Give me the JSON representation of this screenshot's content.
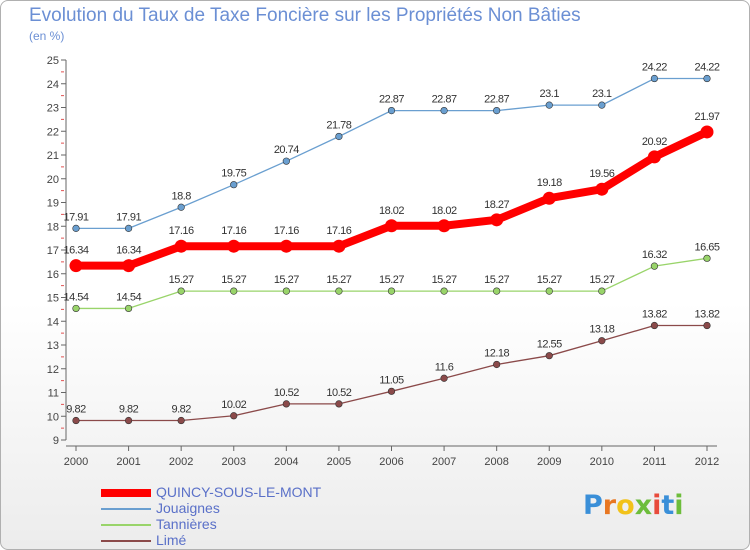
{
  "header": {
    "title": "Evolution du Taux de Taxe Foncière sur les Propriétés Non Bâties",
    "unit": "(en %)"
  },
  "branding": {
    "logo_text": "Proxiti",
    "logo_letter_colors": [
      "#3a8fd8",
      "#e87722",
      "#f2c21a",
      "#6dbd3b",
      "#e84b3c",
      "#3a8fd8",
      "#6dbd3b"
    ]
  },
  "chart_data": {
    "type": "line",
    "title": "Evolution du Taux de Taxe Foncière sur les Propriétés Non Bâties",
    "ylabel": "(en %)",
    "xlabel": "",
    "x": [
      "2000",
      "2001",
      "2002",
      "2003",
      "2004",
      "2005",
      "2006",
      "2007",
      "2008",
      "2009",
      "2010",
      "2011",
      "2012"
    ],
    "ylim": [
      9,
      25
    ],
    "yticks": [
      9,
      10,
      11,
      12,
      13,
      14,
      15,
      16,
      17,
      18,
      19,
      20,
      21,
      22,
      23,
      24,
      25
    ],
    "grid": false,
    "legend": "bottom-left",
    "series": [
      {
        "name": "QUINCY-SOUS-LE-MONT",
        "color": "#ff0000",
        "emphasis": true,
        "values": [
          16.34,
          16.34,
          17.16,
          17.16,
          17.16,
          17.16,
          18.02,
          18.02,
          18.27,
          19.18,
          19.56,
          20.92,
          21.97
        ],
        "labels": [
          "16.34",
          "16.34",
          "17.16",
          "17.16",
          "17.16",
          "17.16",
          "18.02",
          "18.02",
          "18.27",
          "19.18",
          "19.56",
          "20.92",
          "21.97"
        ]
      },
      {
        "name": "Jouaignes",
        "color": "#6a9fd0",
        "emphasis": false,
        "values": [
          17.91,
          17.91,
          18.8,
          19.75,
          20.74,
          21.78,
          22.87,
          22.87,
          22.87,
          23.1,
          23.1,
          24.22,
          24.22
        ],
        "labels": [
          "17.91",
          "17.91",
          "18.8",
          "19.75",
          "20.74",
          "21.78",
          "22.87",
          "22.87",
          "22.87",
          "23.1",
          "23.1",
          "24.22",
          "24.22"
        ]
      },
      {
        "name": "Tannières",
        "color": "#99d46a",
        "emphasis": false,
        "values": [
          14.54,
          14.54,
          15.27,
          15.27,
          15.27,
          15.27,
          15.27,
          15.27,
          15.27,
          15.27,
          15.27,
          16.32,
          16.65
        ],
        "labels": [
          "14.54",
          "14.54",
          "15.27",
          "15.27",
          "15.27",
          "15.27",
          "15.27",
          "15.27",
          "15.27",
          "15.27",
          "15.27",
          "16.32",
          "16.65"
        ]
      },
      {
        "name": "Limé",
        "color": "#8b4a4a",
        "emphasis": false,
        "values": [
          9.82,
          9.82,
          9.82,
          10.02,
          10.52,
          10.52,
          11.05,
          11.6,
          12.18,
          12.55,
          13.18,
          13.82,
          13.82
        ],
        "labels": [
          "9.82",
          "9.82",
          "9.82",
          "10.02",
          "10.52",
          "10.52",
          "11.05",
          "11.6",
          "12.18",
          "12.55",
          "13.18",
          "13.82",
          "13.82"
        ]
      }
    ]
  }
}
